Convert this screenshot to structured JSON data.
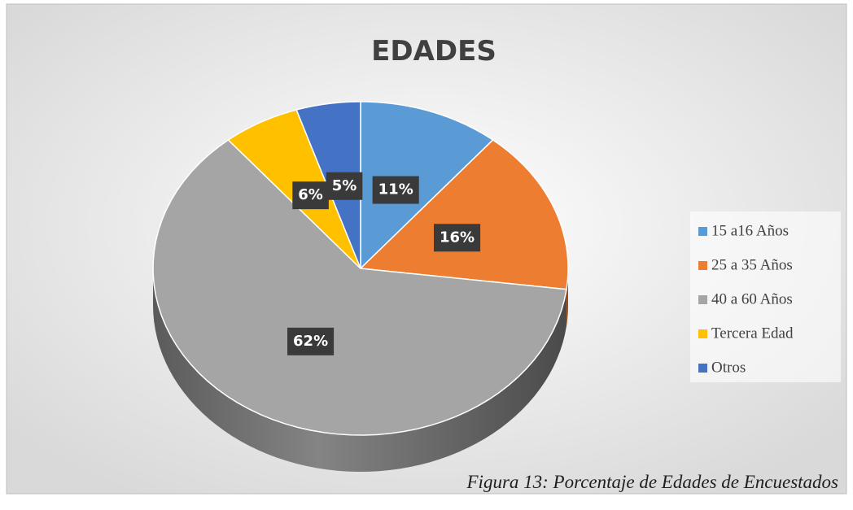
{
  "chart_data": {
    "type": "pie",
    "title": "EDADES",
    "categories": [
      "15 a16 Años",
      "25 a 35 Años",
      "40 a 60 Años",
      "Tercera Edad",
      "Otros"
    ],
    "values": [
      11,
      16,
      62,
      6,
      5
    ],
    "value_labels": [
      "11%",
      "16%",
      "62%",
      "6%",
      "5%"
    ],
    "colors": [
      "#5b9bd5",
      "#ed7d31",
      "#a5a5a5",
      "#ffc000",
      "#4472c4"
    ],
    "legend": "right",
    "caption": "Figura 13: Porcentaje de Edades de Encuestados"
  }
}
